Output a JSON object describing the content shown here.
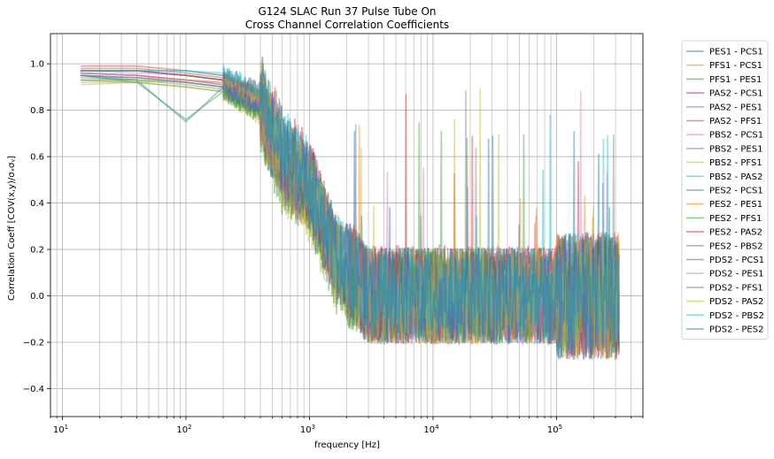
{
  "chart_data": {
    "type": "line",
    "title": "G124 SLAC Run 37 Pulse Tube On",
    "subtitle": "Cross Channel Correlation Coefficients",
    "xlabel": "frequency [Hz]",
    "ylabel": "Correlation Coeff [COV(x,y)/σₓσᵧ]",
    "xscale": "log",
    "xlim": [
      8,
      500000
    ],
    "ylim": [
      -0.52,
      1.13
    ],
    "grid": true,
    "legend_position": "right-outside",
    "x_tick_labels": [
      {
        "value": 10,
        "base": "10",
        "exp": "1"
      },
      {
        "value": 100,
        "base": "10",
        "exp": "2"
      },
      {
        "value": 1000,
        "base": "10",
        "exp": "3"
      },
      {
        "value": 10000,
        "base": "10",
        "exp": "4"
      },
      {
        "value": 100000,
        "base": "10",
        "exp": "5"
      }
    ],
    "y_ticks": [
      -0.4,
      -0.2,
      0.0,
      0.2,
      0.4,
      0.6,
      0.8,
      1.0
    ],
    "y_tick_labels": [
      "−0.4",
      "−0.2",
      "0.0",
      "0.2",
      "0.4",
      "0.6",
      "0.8",
      "1.0"
    ],
    "x_range_of_data": [
      14,
      320000
    ],
    "series": [
      {
        "name": "PES1 - PCS1",
        "color": "#1f77b4",
        "values": [
          [
            14,
            0.97
          ],
          [
            40,
            0.97
          ],
          [
            100,
            0.95
          ],
          [
            200,
            0.93
          ],
          [
            400,
            0.85
          ],
          [
            600,
            0.6
          ],
          [
            1000,
            0.5
          ],
          [
            1600,
            0.2
          ],
          [
            3000,
            0.0
          ],
          [
            320000,
            0.0
          ]
        ]
      },
      {
        "name": "PFS1 - PCS1",
        "color": "#ff7f0e",
        "values": [
          [
            14,
            0.95
          ],
          [
            40,
            0.94
          ],
          [
            100,
            0.92
          ],
          [
            200,
            0.9
          ],
          [
            400,
            0.8
          ],
          [
            600,
            0.55
          ],
          [
            1000,
            0.45
          ],
          [
            1600,
            0.15
          ],
          [
            3000,
            0.0
          ],
          [
            320000,
            0.0
          ]
        ]
      },
      {
        "name": "PFS1 - PES1",
        "color": "#2ca02c",
        "values": [
          [
            14,
            0.93
          ],
          [
            40,
            0.92
          ],
          [
            100,
            0.9
          ],
          [
            200,
            0.88
          ],
          [
            400,
            0.78
          ],
          [
            600,
            0.52
          ],
          [
            1000,
            0.4
          ],
          [
            1600,
            0.1
          ],
          [
            3000,
            0.0
          ],
          [
            320000,
            0.0
          ]
        ]
      },
      {
        "name": "PAS2 - PCS1",
        "color": "#d62728",
        "values": [
          [
            14,
            0.99
          ],
          [
            40,
            0.99
          ],
          [
            100,
            0.97
          ],
          [
            200,
            0.95
          ],
          [
            400,
            0.88
          ],
          [
            600,
            0.65
          ],
          [
            1000,
            0.52
          ],
          [
            1600,
            0.2
          ],
          [
            3000,
            0.02
          ],
          [
            320000,
            0.0
          ]
        ]
      },
      {
        "name": "PAS2 - PES1",
        "color": "#9467bd",
        "values": [
          [
            14,
            0.96
          ],
          [
            40,
            0.95
          ],
          [
            100,
            0.93
          ],
          [
            200,
            0.92
          ],
          [
            400,
            0.84
          ],
          [
            600,
            0.58
          ],
          [
            1000,
            0.48
          ],
          [
            1600,
            0.18
          ],
          [
            3000,
            0.0
          ],
          [
            320000,
            0.0
          ]
        ]
      },
      {
        "name": "PAS2 - PFS1",
        "color": "#8c564b",
        "values": [
          [
            14,
            0.98
          ],
          [
            40,
            0.98
          ],
          [
            100,
            0.96
          ],
          [
            200,
            0.94
          ],
          [
            400,
            0.86
          ],
          [
            600,
            0.62
          ],
          [
            1000,
            0.5
          ],
          [
            1600,
            0.2
          ],
          [
            3000,
            0.01
          ],
          [
            320000,
            0.0
          ]
        ]
      },
      {
        "name": "PBS2 - PCS1",
        "color": "#e377c2",
        "values": [
          [
            14,
            0.97
          ],
          [
            40,
            0.96
          ],
          [
            100,
            0.95
          ],
          [
            200,
            0.93
          ],
          [
            400,
            0.82
          ],
          [
            600,
            0.6
          ],
          [
            1000,
            0.46
          ],
          [
            1600,
            0.16
          ],
          [
            3000,
            0.0
          ],
          [
            320000,
            0.0
          ]
        ]
      },
      {
        "name": "PBS2 - PES1",
        "color": "#7f7f7f",
        "values": [
          [
            14,
            0.94
          ],
          [
            40,
            0.93
          ],
          [
            100,
            0.92
          ],
          [
            200,
            0.9
          ],
          [
            400,
            0.8
          ],
          [
            600,
            0.56
          ],
          [
            1000,
            0.44
          ],
          [
            1600,
            0.14
          ],
          [
            3000,
            0.0
          ],
          [
            320000,
            0.0
          ]
        ]
      },
      {
        "name": "PBS2 - PFS1",
        "color": "#bcbd22",
        "values": [
          [
            14,
            0.92
          ],
          [
            40,
            0.92
          ],
          [
            100,
            0.9
          ],
          [
            200,
            0.88
          ],
          [
            400,
            0.77
          ],
          [
            600,
            0.52
          ],
          [
            1000,
            0.4
          ],
          [
            1600,
            0.12
          ],
          [
            3000,
            0.0
          ],
          [
            320000,
            0.0
          ]
        ]
      },
      {
        "name": "PBS2 - PAS2",
        "color": "#17becf",
        "values": [
          [
            14,
            0.97
          ],
          [
            40,
            0.97
          ],
          [
            100,
            0.97
          ],
          [
            200,
            0.95
          ],
          [
            400,
            0.87
          ],
          [
            600,
            0.64
          ],
          [
            1000,
            0.5
          ],
          [
            1600,
            0.2
          ],
          [
            3000,
            0.01
          ],
          [
            320000,
            0.0
          ]
        ]
      },
      {
        "name": "PES2 - PCS1",
        "color": "#1f77b4",
        "values": [
          [
            14,
            0.95
          ],
          [
            40,
            0.93
          ],
          [
            100,
            0.75
          ],
          [
            200,
            0.9
          ],
          [
            400,
            0.8
          ],
          [
            600,
            0.58
          ],
          [
            1000,
            0.45
          ],
          [
            1600,
            0.15
          ],
          [
            3000,
            0.0
          ],
          [
            320000,
            0.0
          ]
        ]
      },
      {
        "name": "PES2 - PES1",
        "color": "#ff7f0e",
        "values": [
          [
            14,
            0.96
          ],
          [
            40,
            0.95
          ],
          [
            100,
            0.93
          ],
          [
            200,
            0.91
          ],
          [
            400,
            0.82
          ],
          [
            600,
            0.58
          ],
          [
            1000,
            0.47
          ],
          [
            1600,
            0.17
          ],
          [
            3000,
            0.0
          ],
          [
            320000,
            0.0
          ]
        ]
      },
      {
        "name": "PES2 - PFS1",
        "color": "#2ca02c",
        "values": [
          [
            14,
            0.95
          ],
          [
            40,
            0.92
          ],
          [
            100,
            0.76
          ],
          [
            200,
            0.88
          ],
          [
            400,
            0.78
          ],
          [
            600,
            0.55
          ],
          [
            1000,
            0.42
          ],
          [
            1600,
            0.12
          ],
          [
            3000,
            0.0
          ],
          [
            320000,
            0.0
          ]
        ]
      },
      {
        "name": "PES2 - PAS2",
        "color": "#d62728",
        "values": [
          [
            14,
            0.97
          ],
          [
            40,
            0.97
          ],
          [
            100,
            0.95
          ],
          [
            200,
            0.93
          ],
          [
            400,
            0.86
          ],
          [
            600,
            0.62
          ],
          [
            1000,
            0.5
          ],
          [
            1600,
            0.2
          ],
          [
            3000,
            0.01
          ],
          [
            320000,
            0.0
          ]
        ]
      },
      {
        "name": "PES2 - PBS2",
        "color": "#9467bd",
        "values": [
          [
            14,
            0.96
          ],
          [
            40,
            0.95
          ],
          [
            100,
            0.93
          ],
          [
            200,
            0.91
          ],
          [
            400,
            0.83
          ],
          [
            600,
            0.6
          ],
          [
            1000,
            0.47
          ],
          [
            1600,
            0.16
          ],
          [
            3000,
            0.0
          ],
          [
            320000,
            0.0
          ]
        ]
      },
      {
        "name": "PDS2 - PCS1",
        "color": "#8c564b",
        "values": [
          [
            14,
            0.97
          ],
          [
            40,
            0.97
          ],
          [
            100,
            0.95
          ],
          [
            200,
            0.93
          ],
          [
            400,
            0.85
          ],
          [
            600,
            0.6
          ],
          [
            1000,
            0.48
          ],
          [
            1600,
            0.18
          ],
          [
            3000,
            0.0
          ],
          [
            320000,
            0.0
          ]
        ]
      },
      {
        "name": "PDS2 - PES1",
        "color": "#e377c2",
        "values": [
          [
            14,
            0.95
          ],
          [
            40,
            0.94
          ],
          [
            100,
            0.93
          ],
          [
            200,
            0.91
          ],
          [
            400,
            0.82
          ],
          [
            600,
            0.58
          ],
          [
            1000,
            0.46
          ],
          [
            1600,
            0.16
          ],
          [
            3000,
            0.0
          ],
          [
            320000,
            0.0
          ]
        ]
      },
      {
        "name": "PDS2 - PFS1",
        "color": "#7f7f7f",
        "values": [
          [
            14,
            0.93
          ],
          [
            40,
            0.93
          ],
          [
            100,
            0.91
          ],
          [
            200,
            0.89
          ],
          [
            400,
            0.79
          ],
          [
            600,
            0.54
          ],
          [
            1000,
            0.42
          ],
          [
            1600,
            0.13
          ],
          [
            3000,
            0.0
          ],
          [
            320000,
            0.0
          ]
        ]
      },
      {
        "name": "PDS2 - PAS2",
        "color": "#bcbd22",
        "values": [
          [
            14,
            0.91
          ],
          [
            40,
            0.92
          ],
          [
            100,
            0.93
          ],
          [
            200,
            0.92
          ],
          [
            400,
            0.84
          ],
          [
            600,
            0.6
          ],
          [
            1000,
            0.48
          ],
          [
            1600,
            0.18
          ],
          [
            3000,
            0.0
          ],
          [
            320000,
            0.0
          ]
        ]
      },
      {
        "name": "PDS2 - PBS2",
        "color": "#17becf",
        "values": [
          [
            14,
            0.97
          ],
          [
            40,
            0.97
          ],
          [
            100,
            0.97
          ],
          [
            200,
            0.96
          ],
          [
            400,
            0.88
          ],
          [
            600,
            0.65
          ],
          [
            1000,
            0.52
          ],
          [
            1600,
            0.2
          ],
          [
            3000,
            0.01
          ],
          [
            320000,
            0.0
          ]
        ]
      },
      {
        "name": "PDS2 - PES2",
        "color": "#1f77b4",
        "values": [
          [
            14,
            0.95
          ],
          [
            40,
            0.94
          ],
          [
            100,
            0.92
          ],
          [
            200,
            0.9
          ],
          [
            400,
            0.8
          ],
          [
            600,
            0.6
          ],
          [
            1000,
            0.5
          ],
          [
            1600,
            0.2
          ],
          [
            3000,
            0.0
          ],
          [
            320000,
            0.0
          ]
        ]
      }
    ]
  }
}
